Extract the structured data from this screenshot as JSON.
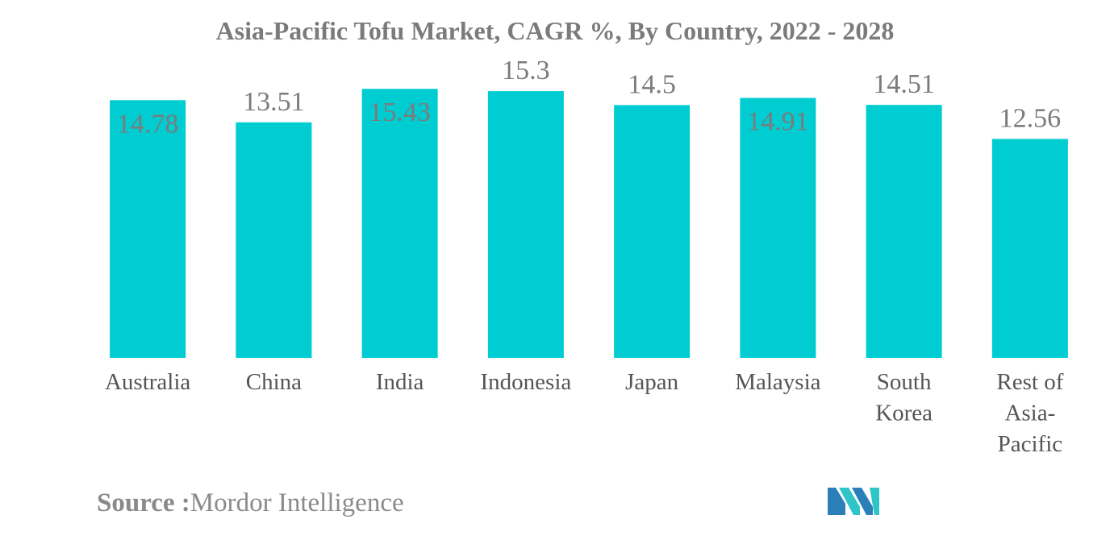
{
  "source": {
    "label": "Source :",
    "value": "Mordor Intelligence"
  },
  "chart_data": {
    "type": "bar",
    "title": "Asia-Pacific Tofu Market, CAGR %, By Country, 2022 - 2028",
    "xlabel": "",
    "ylabel": "",
    "categories": [
      "Australia",
      "China",
      "India",
      "Indonesia",
      "Japan",
      "Malaysia",
      "South Korea",
      "Rest of Asia-Pacific"
    ],
    "values": [
      14.78,
      13.51,
      15.43,
      15.3,
      14.5,
      14.91,
      14.51,
      12.56
    ],
    "value_labels": [
      "14.78",
      "13.51",
      "15.43",
      "15.3",
      "14.5",
      "14.91",
      "14.51",
      "12.56"
    ],
    "ylim": [
      0,
      16
    ],
    "grid": false,
    "legend": "none",
    "bar_color": "#00cdd1",
    "label_color": "#7b7b7b"
  },
  "logo": {
    "icon": "mordor-intelligence-logo-icon",
    "colors": [
      "#2a7fb8",
      "#2fc4c8"
    ]
  }
}
